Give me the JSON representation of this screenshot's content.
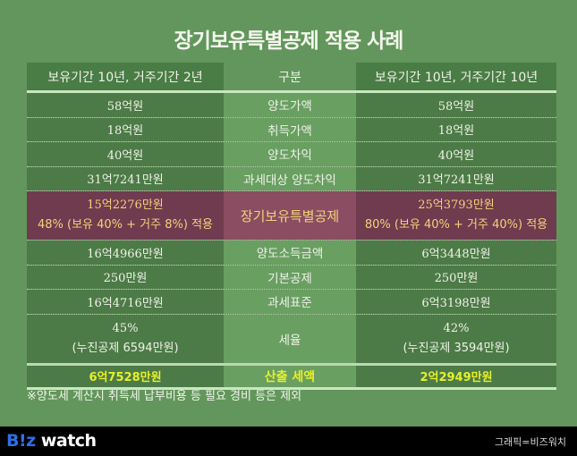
{
  "title": "장기보유특별공제 적용 사례",
  "header": {
    "left": "보유기간 10년, 거주기간 2년",
    "middle": "구분",
    "right": "보유기간 10년, 거주기간 10년"
  },
  "rows": [
    {
      "label": "양도가액",
      "left": "58억원",
      "right": "58억원"
    },
    {
      "label": "취득가액",
      "left": "18억원",
      "right": "18억원"
    },
    {
      "label": "양도차익",
      "left": "40억원",
      "right": "40억원"
    },
    {
      "label": "과세대상 양도차익",
      "left": "31억7241만원",
      "right": "31억7241만원"
    }
  ],
  "highlight": {
    "label": "장기보유특별공제",
    "left_amount": "15억2276만원",
    "left_rate": "48% (보유 40% + 거주 8%) 적용",
    "right_amount": "25억3793만원",
    "right_rate": "80% (보유 40% + 거주 40%) 적용",
    "color": "#f3d27a"
  },
  "rows2": [
    {
      "label": "양도소득금액",
      "left": "16억4966만원",
      "right": "6억3448만원"
    },
    {
      "label": "기본공제",
      "left": "250만원",
      "right": "250만원"
    },
    {
      "label": "과세표준",
      "left": "16억4716만원",
      "right": "6억3198만원"
    }
  ],
  "tax_rate": {
    "label": "세율",
    "left_rate": "45%",
    "left_deduction": "(누진공제 6594만원)",
    "right_rate": "42%",
    "right_deduction": "(누진공제 3594만원)"
  },
  "final": {
    "label": "산출 세액",
    "left": "6억7528만원",
    "right": "2억2949만원",
    "color": "#e6f02a"
  },
  "footnote": "※양도세 계산시 취득세 납부비용 등 필요 경비 등은 제외",
  "footer": {
    "logo_b": "B!z",
    "logo_w": " watch",
    "credit": "그래픽=비즈워치"
  },
  "colors": {
    "background": "#63965c",
    "side_cells": "#4d7b47",
    "mid_cells": "#6a9f62",
    "highlight_side": "#6f3b4f",
    "highlight_mid": "#8a4d62"
  }
}
